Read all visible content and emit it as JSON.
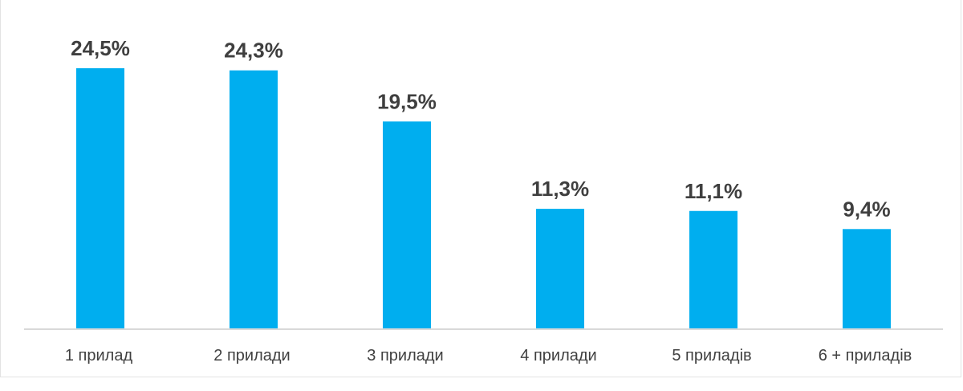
{
  "chart_data": {
    "type": "bar",
    "categories": [
      "1 прилад",
      "2 прилади",
      "3 прилади",
      "4 прилади",
      "5 приладів",
      "6 + приладів"
    ],
    "values": [
      24.5,
      24.3,
      19.5,
      11.3,
      11.1,
      9.4
    ],
    "value_labels": [
      "24,5%",
      "24,3%",
      "19,5%",
      "11,3%",
      "11,1%",
      "9,4%"
    ],
    "title": "",
    "xlabel": "",
    "ylabel": "",
    "ylim": [
      0,
      24.5
    ],
    "grid": false,
    "legend": "none",
    "colors": {
      "bar": "#00AEEF",
      "axis": "#d9d9d9",
      "label": "#3f3f3f"
    }
  }
}
